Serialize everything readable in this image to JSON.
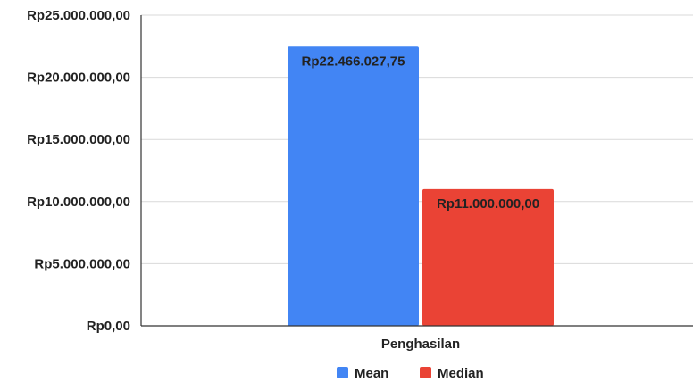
{
  "chart_data": {
    "type": "bar",
    "title": "",
    "xlabel": "",
    "ylabel": "",
    "categories": [
      "Penghasilan"
    ],
    "series": [
      {
        "name": "Mean",
        "values": [
          22466027.75
        ],
        "color": "#4285F4",
        "label": "Rp22.466.027,75"
      },
      {
        "name": "Median",
        "values": [
          11000000
        ],
        "color": "#EA4335",
        "label": "Rp11.000.000,00"
      }
    ],
    "ylim": [
      0,
      25000000
    ],
    "y_ticks": [
      {
        "value": 0,
        "label": "Rp0,00"
      },
      {
        "value": 5000000,
        "label": "Rp5.000.000,00"
      },
      {
        "value": 10000000,
        "label": "Rp10.000.000,00"
      },
      {
        "value": 15000000,
        "label": "Rp15.000.000,00"
      },
      {
        "value": 20000000,
        "label": "Rp20.000.000,00"
      },
      {
        "value": 25000000,
        "label": "Rp25.000.000,00"
      }
    ],
    "grid": true,
    "legend": "bottom",
    "axis_color": "#333333",
    "grid_color": "#d9d9d9"
  }
}
